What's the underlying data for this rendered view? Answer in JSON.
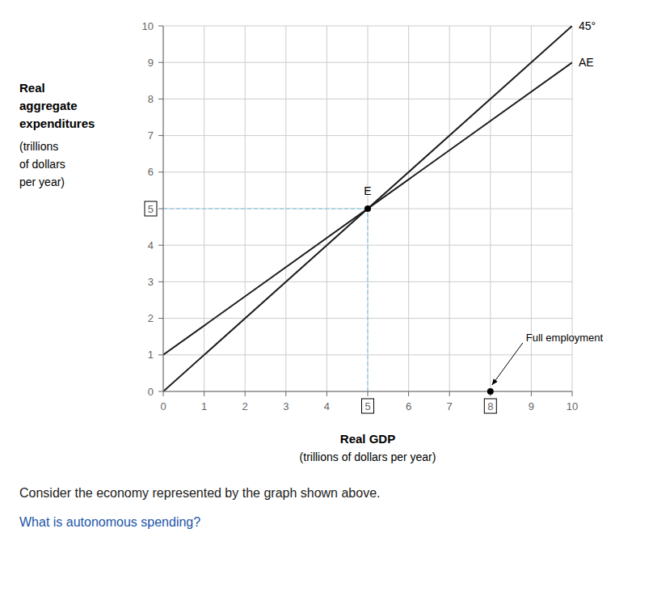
{
  "chart_data": {
    "type": "line",
    "xlabel": [
      "Real GDP",
      "(trillions of dollars per year)"
    ],
    "ylabel": [
      [
        "Real",
        "aggregate",
        "expenditures"
      ],
      [
        "(trillions",
        "of dollars",
        "per year)"
      ]
    ],
    "xlim": [
      0,
      10
    ],
    "ylim": [
      0,
      10
    ],
    "xticks": [
      0,
      1,
      2,
      3,
      4,
      5,
      6,
      7,
      8,
      9,
      10
    ],
    "yticks": [
      0,
      1,
      2,
      3,
      4,
      5,
      6,
      7,
      8,
      9,
      10
    ],
    "grid": true,
    "series": [
      {
        "name": "45°",
        "color": "#1a1a1a",
        "x": [
          0,
          10
        ],
        "values": [
          0,
          10
        ]
      },
      {
        "name": "AE",
        "color": "#1a1a1a",
        "x": [
          0,
          10
        ],
        "values": [
          1,
          9
        ]
      }
    ],
    "guides": [
      {
        "x": [
          5,
          5
        ],
        "values": [
          0,
          5
        ],
        "color": "#aad4e8",
        "line_style": "dashed"
      },
      {
        "x": [
          0,
          5
        ],
        "values": [
          5,
          5
        ],
        "color": "#aad4e8",
        "line_style": "dashed"
      }
    ],
    "points": [
      {
        "label": "E",
        "x": 5,
        "y": 5,
        "color": "#000000"
      }
    ],
    "annotations": [
      {
        "text": "Full employment",
        "x": 8,
        "y": 0,
        "color": "#000000"
      }
    ],
    "captions": [
      {
        "text": "Consider the economy represented by the graph shown above.",
        "color": "#222222"
      },
      {
        "text": "What is autonomous spending?",
        "color": "#2255aa"
      }
    ]
  }
}
